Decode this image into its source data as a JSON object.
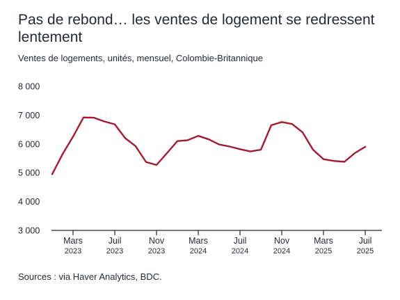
{
  "header": {
    "title": "Pas de rebond… les ventes de logement se redressent lentement",
    "subtitle": "Ventes de logements, unités, mensuel, Colombie-Britannique"
  },
  "footer": {
    "source": "Sources : via Haver Analytics, BDC."
  },
  "colors": {
    "line": "#a8182e",
    "axis": "#1f2a33",
    "text": "#1f2a33"
  },
  "chart_data": {
    "type": "line",
    "title": "Pas de rebond… les ventes de logement se redressent lentement",
    "subtitle": "Ventes de logements, unités, mensuel, Colombie-Britannique",
    "xlabel": "",
    "ylabel": "",
    "ylim": [
      3000,
      8000
    ],
    "yticks": [
      3000,
      4000,
      5000,
      6000,
      7000,
      8000
    ],
    "ytick_labels": [
      "3 000",
      "4 000",
      "5 000",
      "6 000",
      "7 000",
      "8 000"
    ],
    "xticks": [
      {
        "date": "2023-03",
        "month": "Mars",
        "year": "2023"
      },
      {
        "date": "2023-07",
        "month": "Juil",
        "year": "2023"
      },
      {
        "date": "2023-11",
        "month": "Nov",
        "year": "2023"
      },
      {
        "date": "2024-03",
        "month": "Mars",
        "year": "2024"
      },
      {
        "date": "2024-07",
        "month": "Juil",
        "year": "2024"
      },
      {
        "date": "2024-11",
        "month": "Nov",
        "year": "2024"
      },
      {
        "date": "2025-03",
        "month": "Mars",
        "year": "2025"
      },
      {
        "date": "2025-07",
        "month": "Juil",
        "year": "2025"
      }
    ],
    "grid": false,
    "legend": "none",
    "x": [
      "2023-01",
      "2023-02",
      "2023-03",
      "2023-04",
      "2023-05",
      "2023-06",
      "2023-07",
      "2023-08",
      "2023-09",
      "2023-10",
      "2023-11",
      "2023-12",
      "2024-01",
      "2024-02",
      "2024-03",
      "2024-04",
      "2024-05",
      "2024-06",
      "2024-07",
      "2024-08",
      "2024-09",
      "2024-10",
      "2024-11",
      "2024-12",
      "2025-01",
      "2025-02",
      "2025-03",
      "2025-04",
      "2025-05",
      "2025-06",
      "2025-07",
      "2025-08"
    ],
    "series": [
      {
        "values": [
          4950,
          5650,
          6250,
          6920,
          6910,
          6780,
          6680,
          6200,
          5920,
          5370,
          5270,
          5680,
          6100,
          6130,
          6280,
          6160,
          5980,
          5910,
          5820,
          5740,
          5800,
          6650,
          6760,
          6690,
          6400,
          5800,
          5470,
          5410,
          5380,
          5680,
          5900,
          null
        ]
      }
    ]
  }
}
